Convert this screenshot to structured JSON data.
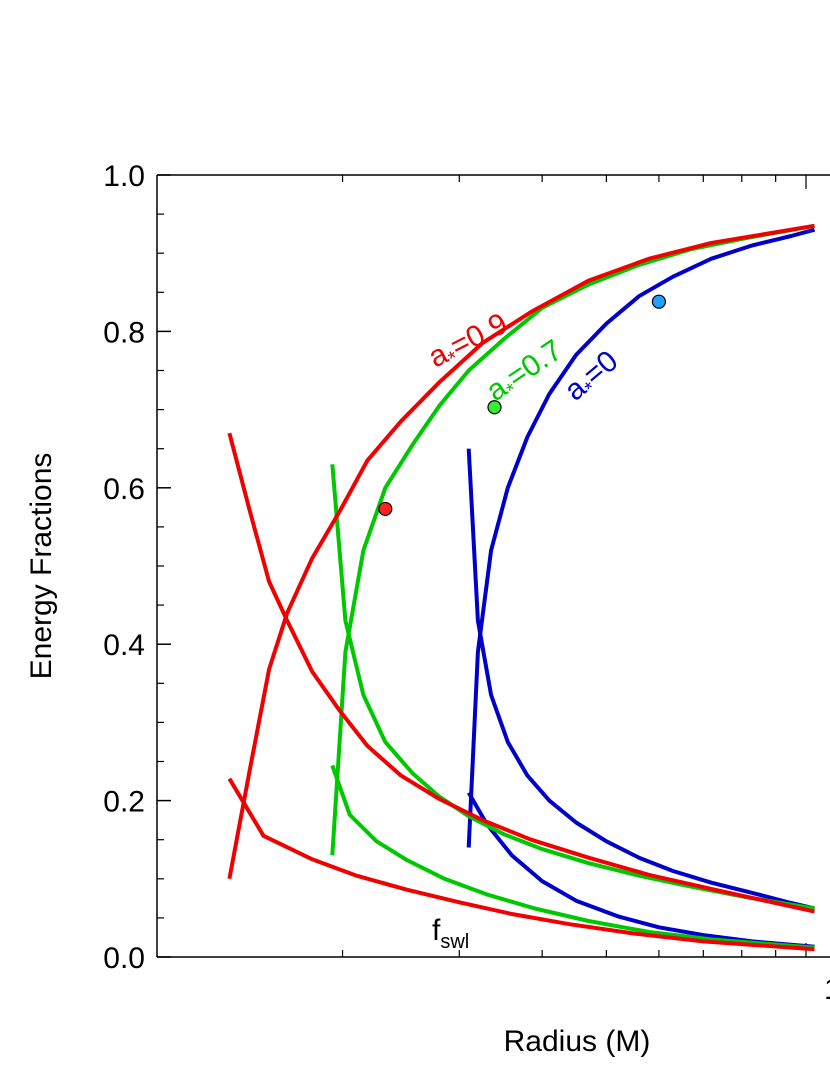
{
  "chart_data": {
    "type": "line",
    "xlabel": "Radius (M)",
    "ylabel": "Energy Fractions",
    "xscale": "log",
    "xlim": [
      1.05,
      10.3
    ],
    "ylim": [
      0.0,
      1.0
    ],
    "y_ticks": [
      "0.0",
      "0.2",
      "0.4",
      "0.6",
      "0.8",
      "1.0"
    ],
    "x_tick_label_visible": "1",
    "grid": false,
    "series": [
      {
        "spin": "0",
        "label_prefix": "a",
        "label_sub": "*",
        "label_suffix": "=0",
        "color": "#0000c8",
        "role": "upper",
        "x": [
          3.1,
          3.2,
          3.35,
          3.55,
          3.8,
          4.1,
          4.5,
          5,
          5.6,
          6.3,
          7.2,
          8.3,
          9.5,
          10.3
        ],
        "y": [
          0.14,
          0.39,
          0.52,
          0.6,
          0.665,
          0.72,
          0.77,
          0.81,
          0.845,
          0.87,
          0.893,
          0.91,
          0.922,
          0.93
        ]
      },
      {
        "spin": "0",
        "color": "#0000c8",
        "role": "middle",
        "x": [
          3.1,
          3.2,
          3.35,
          3.55,
          3.8,
          4.1,
          4.5,
          5,
          5.6,
          6.3,
          7.2,
          8.3,
          9.5,
          10.3
        ],
        "y": [
          0.65,
          0.43,
          0.335,
          0.275,
          0.232,
          0.2,
          0.172,
          0.148,
          0.127,
          0.11,
          0.095,
          0.082,
          0.069,
          0.062
        ]
      },
      {
        "spin": "0",
        "color": "#0000c8",
        "role": "lower",
        "x": [
          3.1,
          3.3,
          3.6,
          4.0,
          4.5,
          5.2,
          6.0,
          7.0,
          8.3,
          10.3
        ],
        "y": [
          0.21,
          0.17,
          0.13,
          0.097,
          0.072,
          0.052,
          0.038,
          0.028,
          0.02,
          0.013
        ]
      },
      {
        "spin": "0.7",
        "label_prefix": "a",
        "label_sub": "*",
        "label_suffix": "=0.7",
        "color": "#00c800",
        "role": "upper",
        "x": [
          1.93,
          2.02,
          2.15,
          2.32,
          2.55,
          2.8,
          3.1,
          3.5,
          4.0,
          4.7,
          5.6,
          6.7,
          8.2,
          10.3
        ],
        "y": [
          0.13,
          0.39,
          0.52,
          0.6,
          0.655,
          0.705,
          0.75,
          0.79,
          0.83,
          0.86,
          0.885,
          0.905,
          0.92,
          0.935
        ]
      },
      {
        "spin": "0.7",
        "color": "#00c800",
        "role": "middle",
        "x": [
          1.93,
          2.02,
          2.15,
          2.32,
          2.55,
          2.8,
          3.1,
          3.5,
          4.0,
          4.7,
          5.6,
          6.7,
          8.2,
          10.3
        ],
        "y": [
          0.63,
          0.43,
          0.335,
          0.275,
          0.235,
          0.205,
          0.18,
          0.157,
          0.138,
          0.12,
          0.104,
          0.09,
          0.076,
          0.062
        ]
      },
      {
        "spin": "0.7",
        "color": "#00c800",
        "role": "lower",
        "x": [
          1.93,
          2.05,
          2.25,
          2.5,
          2.85,
          3.3,
          3.9,
          4.7,
          5.8,
          7.3,
          10.3
        ],
        "y": [
          0.245,
          0.182,
          0.148,
          0.124,
          0.1,
          0.08,
          0.062,
          0.046,
          0.032,
          0.022,
          0.012
        ]
      },
      {
        "spin": "0.9",
        "label_prefix": "a",
        "label_sub": "*",
        "label_suffix": "=0.9",
        "color": "#f00000",
        "role": "upper",
        "x": [
          1.35,
          1.45,
          1.55,
          1.65,
          1.8,
          1.98,
          2.18,
          2.45,
          2.8,
          3.25,
          3.85,
          4.7,
          5.8,
          7.2,
          10.3
        ],
        "y": [
          0.1,
          0.24,
          0.368,
          0.44,
          0.51,
          0.57,
          0.635,
          0.685,
          0.735,
          0.785,
          0.825,
          0.865,
          0.893,
          0.913,
          0.935
        ]
      },
      {
        "spin": "0.9",
        "color": "#f00000",
        "role": "middle",
        "x": [
          1.35,
          1.45,
          1.55,
          1.65,
          1.8,
          1.98,
          2.18,
          2.45,
          2.8,
          3.25,
          3.85,
          4.7,
          5.8,
          7.2,
          10.3
        ],
        "y": [
          0.67,
          0.57,
          0.48,
          0.43,
          0.365,
          0.315,
          0.27,
          0.232,
          0.202,
          0.175,
          0.15,
          0.127,
          0.105,
          0.087,
          0.058
        ]
      },
      {
        "spin": "0.9",
        "color": "#f00000",
        "role": "lower",
        "x": [
          1.35,
          1.52,
          1.8,
          2.1,
          2.5,
          3.0,
          3.6,
          4.4,
          5.5,
          7.0,
          10.3
        ],
        "y": [
          0.228,
          0.155,
          0.125,
          0.104,
          0.086,
          0.07,
          0.055,
          0.042,
          0.03,
          0.02,
          0.01
        ]
      }
    ],
    "isco_markers": [
      {
        "spin": "0.9",
        "x": 2.32,
        "y": 0.573,
        "fill": "#ff2020"
      },
      {
        "spin": "0.7",
        "x": 3.39,
        "y": 0.703,
        "fill": "#33ee33"
      },
      {
        "spin": "0",
        "x": 6.0,
        "y": 0.838,
        "fill": "#22a0ff"
      }
    ],
    "annotations": [
      {
        "text": "f",
        "sub": "swl",
        "x": 3.1,
        "y": 0.03
      }
    ]
  }
}
